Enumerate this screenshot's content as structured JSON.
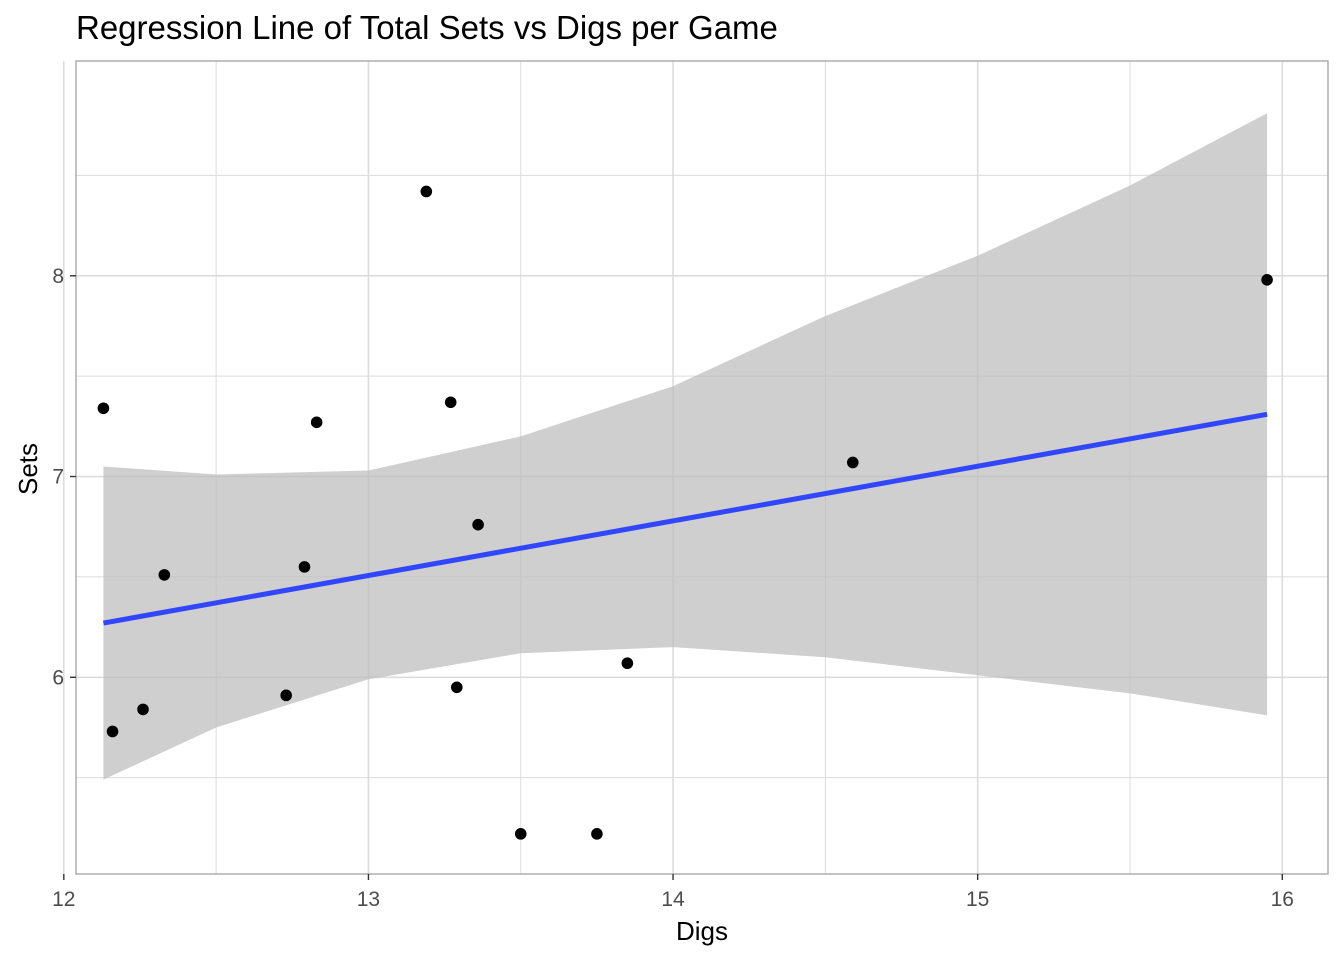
{
  "chart_data": {
    "type": "scatter",
    "title": "Regression Line of Total Sets vs Digs per Game",
    "xlabel": "Digs",
    "ylabel": "Sets",
    "xlim": [
      12.04,
      16.15
    ],
    "ylim": [
      5.02,
      9.07
    ],
    "x_ticks": [
      12,
      13,
      14,
      15,
      16
    ],
    "y_ticks": [
      6,
      7,
      8
    ],
    "x_minor_ticks": [
      12.5,
      13.5,
      14.5,
      15.5
    ],
    "y_minor_ticks": [
      5.5,
      6.5,
      7.5,
      8.5
    ],
    "grid": true,
    "points": [
      {
        "x": 12.13,
        "y": 7.34
      },
      {
        "x": 12.16,
        "y": 5.73
      },
      {
        "x": 12.26,
        "y": 5.84
      },
      {
        "x": 12.33,
        "y": 6.51
      },
      {
        "x": 12.73,
        "y": 5.91
      },
      {
        "x": 12.79,
        "y": 6.55
      },
      {
        "x": 12.83,
        "y": 7.27
      },
      {
        "x": 13.19,
        "y": 8.42
      },
      {
        "x": 13.27,
        "y": 7.37
      },
      {
        "x": 13.29,
        "y": 5.95
      },
      {
        "x": 13.36,
        "y": 6.76
      },
      {
        "x": 13.5,
        "y": 5.22
      },
      {
        "x": 13.75,
        "y": 5.22
      },
      {
        "x": 13.85,
        "y": 6.07
      },
      {
        "x": 14.59,
        "y": 7.07
      },
      {
        "x": 15.95,
        "y": 7.98
      }
    ],
    "regression": {
      "x": [
        12.13,
        15.95
      ],
      "y": [
        6.27,
        7.31
      ],
      "ci_upper": {
        "x": [
          12.13,
          12.5,
          13.0,
          13.5,
          14.0,
          14.5,
          15.0,
          15.5,
          15.95
        ],
        "y": [
          7.05,
          7.01,
          7.03,
          7.2,
          7.45,
          7.8,
          8.1,
          8.45,
          8.81
        ]
      },
      "ci_lower": {
        "x": [
          12.13,
          12.5,
          13.0,
          13.5,
          14.0,
          14.5,
          15.0,
          15.5,
          15.95
        ],
        "y": [
          5.49,
          5.75,
          5.99,
          6.12,
          6.15,
          6.1,
          6.01,
          5.92,
          5.81
        ]
      }
    },
    "colors": {
      "points": "#000000",
      "line": "#3047ff",
      "ci_band": "#bdbdbd",
      "grid": "#dcdcdc",
      "panel_border": "#a9a9a9",
      "tick_text": "#4d4d4d"
    }
  }
}
